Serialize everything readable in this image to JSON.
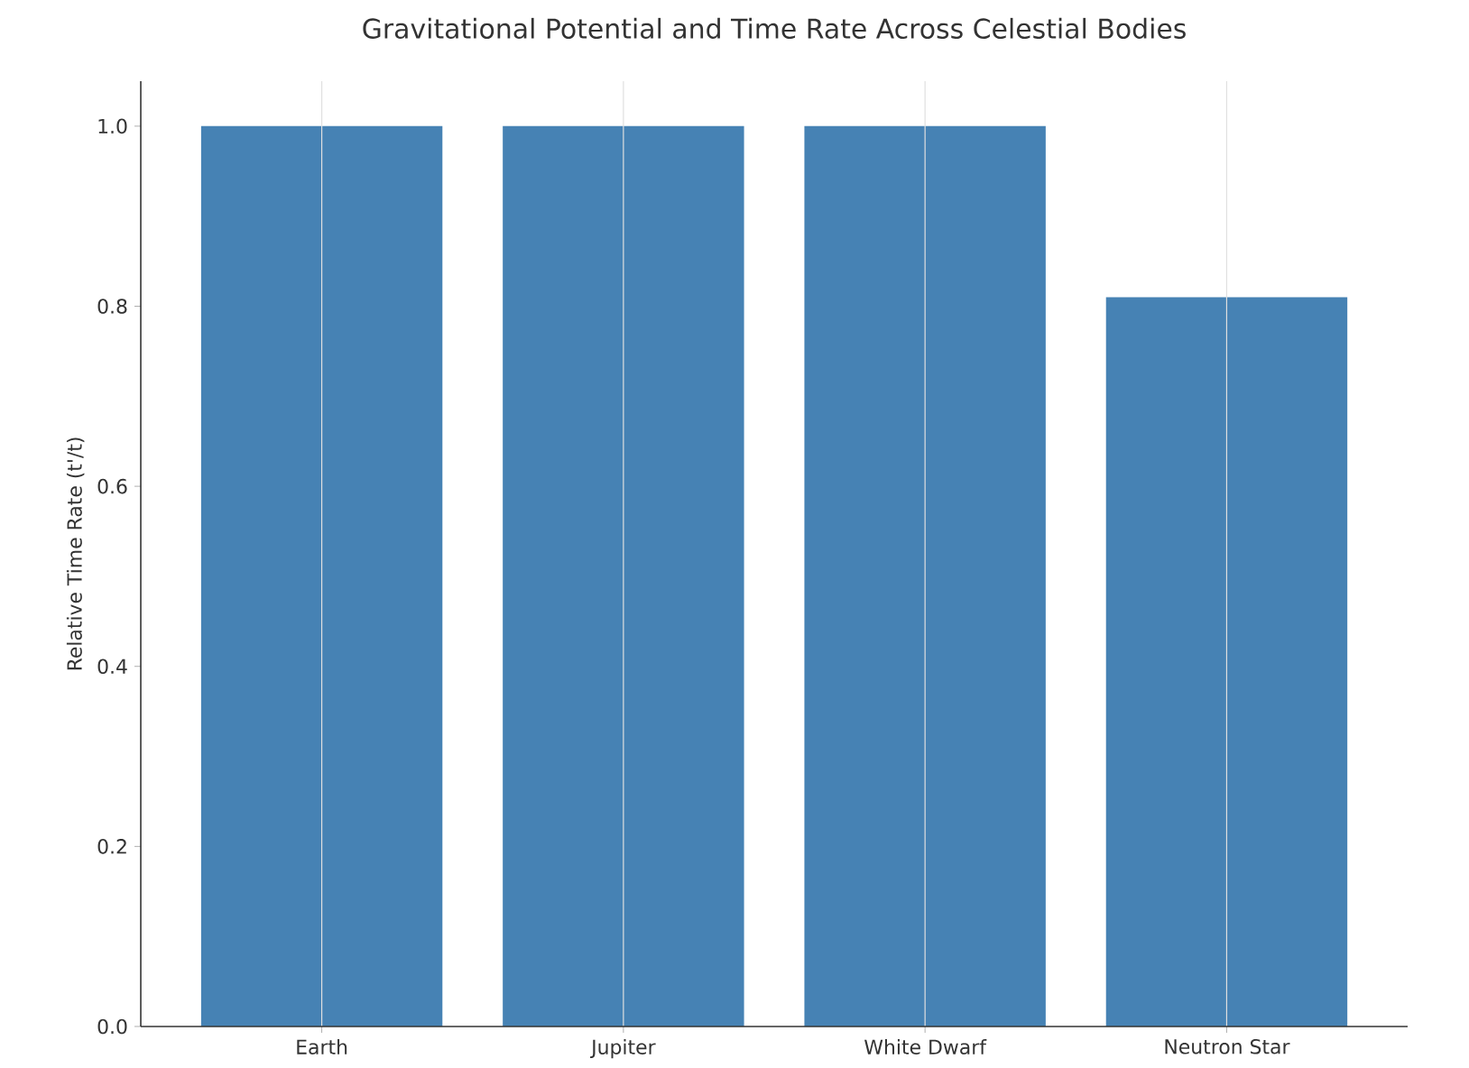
{
  "chart_data": {
    "type": "bar",
    "title": "Gravitational Potential and Time Rate Across Celestial Bodies",
    "ylabel": "Relative Time Rate (t'/t)",
    "categories": [
      "Earth",
      "Jupiter",
      "White Dwarf",
      "Neutron Star"
    ],
    "values": [
      1.0,
      1.0,
      1.0,
      0.81
    ],
    "color": "#4682b4",
    "ylim": [
      0,
      1.05
    ],
    "yticks": [
      {
        "value": 0,
        "label": "0.0"
      },
      {
        "value": 0.2,
        "label": "0.2"
      },
      {
        "value": 0.4,
        "label": "0.4"
      },
      {
        "value": 0.6,
        "label": "0.6"
      },
      {
        "value": 0.8,
        "label": "0.8"
      },
      {
        "value": 1.0,
        "label": "1.0"
      }
    ],
    "grid": "x"
  }
}
